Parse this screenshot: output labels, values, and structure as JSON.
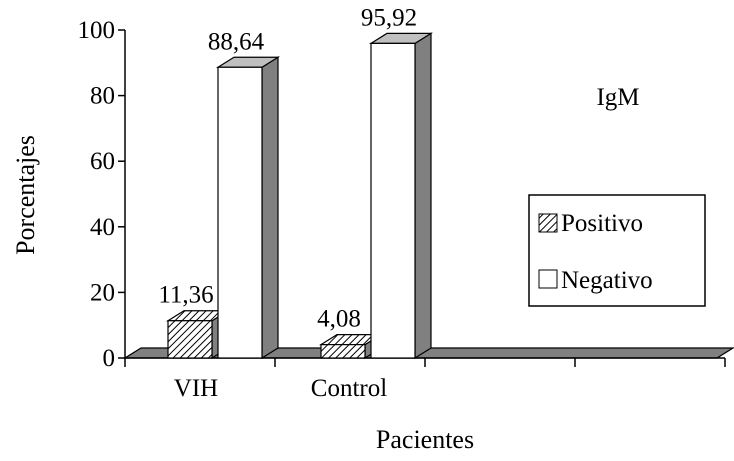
{
  "chart_data": {
    "type": "bar",
    "categories": [
      "VIH",
      "Control"
    ],
    "series": [
      {
        "name": "Positivo",
        "values": [
          11.36,
          4.08
        ],
        "labels": [
          "11,36",
          "4,08"
        ],
        "fill": "hatch"
      },
      {
        "name": "Negativo",
        "values": [
          88.64,
          95.92
        ],
        "labels": [
          "88,64",
          "95,92"
        ],
        "fill": "#ffffff"
      }
    ],
    "xlabel": "Pacientes",
    "ylabel": "Porcentajes",
    "ylim": [
      0,
      100
    ],
    "yticks": [
      "0",
      "20",
      "40",
      "60",
      "80",
      "100"
    ],
    "annotation": "IgM",
    "legend_position": "right",
    "grid": false,
    "colors": {
      "floor": "#808080",
      "side": "#808080",
      "top": "#c0c0c0"
    }
  }
}
